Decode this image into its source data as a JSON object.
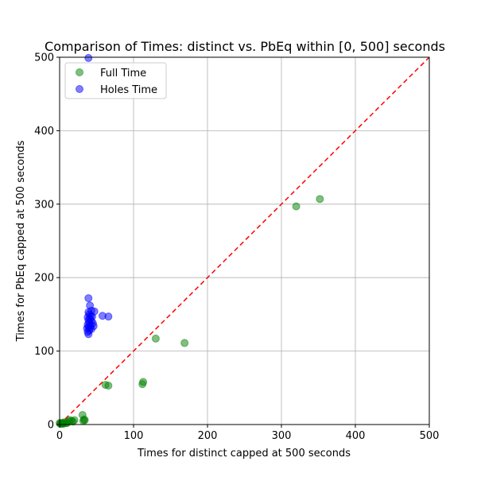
{
  "chart_data": {
    "type": "scatter",
    "title": "Comparison of Times: distinct vs. PbEq within [0, 500] seconds",
    "xlabel": "Times for distinct capped at 500 seconds",
    "ylabel": "Times for PbEq capped at 500 seconds",
    "xlim": [
      0,
      500
    ],
    "ylim": [
      0,
      500
    ],
    "xticks": [
      0,
      100,
      200,
      300,
      400,
      500
    ],
    "yticks": [
      0,
      100,
      200,
      300,
      400,
      500
    ],
    "grid": true,
    "legend_position": "top-left",
    "reference_line": {
      "from": [
        0,
        0
      ],
      "to": [
        500,
        500
      ],
      "style": "dashed",
      "color": "#ff0000"
    },
    "series": [
      {
        "name": "Full Time",
        "color": "#008000",
        "points": [
          [
            0,
            2
          ],
          [
            1,
            1
          ],
          [
            2,
            2
          ],
          [
            3,
            1
          ],
          [
            4,
            2
          ],
          [
            5,
            1
          ],
          [
            6,
            3
          ],
          [
            8,
            2
          ],
          [
            10,
            2
          ],
          [
            12,
            4
          ],
          [
            14,
            6
          ],
          [
            16,
            5
          ],
          [
            18,
            4
          ],
          [
            20,
            6
          ],
          [
            31,
            13
          ],
          [
            32,
            5
          ],
          [
            33,
            7
          ],
          [
            34,
            6
          ],
          [
            62,
            54
          ],
          [
            66,
            53
          ],
          [
            112,
            55
          ],
          [
            113,
            58
          ],
          [
            130,
            117
          ],
          [
            169,
            111
          ],
          [
            320,
            297
          ],
          [
            352,
            307
          ]
        ]
      },
      {
        "name": "Holes Time",
        "color": "#0000ff",
        "points": [
          [
            39,
            499
          ],
          [
            39,
            172
          ],
          [
            41,
            162
          ],
          [
            43,
            155
          ],
          [
            47,
            154
          ],
          [
            39,
            153
          ],
          [
            40,
            150
          ],
          [
            42,
            148
          ],
          [
            44,
            147
          ],
          [
            38,
            146
          ],
          [
            41,
            144
          ],
          [
            39,
            142
          ],
          [
            43,
            141
          ],
          [
            40,
            139
          ],
          [
            45,
            138
          ],
          [
            38,
            136
          ],
          [
            42,
            135
          ],
          [
            46,
            134
          ],
          [
            39,
            133
          ],
          [
            41,
            132
          ],
          [
            37,
            131
          ],
          [
            43,
            130
          ],
          [
            40,
            128
          ],
          [
            38,
            126
          ],
          [
            39,
            123
          ],
          [
            58,
            148
          ],
          [
            66,
            147
          ]
        ]
      }
    ]
  }
}
